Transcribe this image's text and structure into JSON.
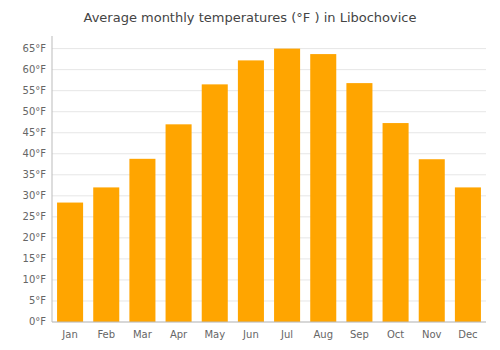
{
  "chart_data": {
    "type": "bar",
    "title": "Average monthly temperatures (°F ) in Libochovice",
    "categories": [
      "Jan",
      "Feb",
      "Mar",
      "Apr",
      "May",
      "Jun",
      "Jul",
      "Aug",
      "Sep",
      "Oct",
      "Nov",
      "Dec"
    ],
    "values": [
      28.4,
      32.0,
      38.8,
      47.0,
      56.5,
      62.2,
      65.0,
      63.7,
      56.8,
      47.3,
      38.7,
      32.0
    ],
    "color": "#FFA500",
    "ylim": [
      0,
      68
    ],
    "yticks": [
      {
        "value": 0,
        "label": "0°F"
      },
      {
        "value": 5,
        "label": "5°F"
      },
      {
        "value": 10,
        "label": "10°F"
      },
      {
        "value": 15,
        "label": "15°F"
      },
      {
        "value": 20,
        "label": "20°F"
      },
      {
        "value": 25,
        "label": "25°F"
      },
      {
        "value": 30,
        "label": "30°F"
      },
      {
        "value": 35,
        "label": "35°F"
      },
      {
        "value": 40,
        "label": "40°F"
      },
      {
        "value": 45,
        "label": "45°F"
      },
      {
        "value": 50,
        "label": "50°F"
      },
      {
        "value": 55,
        "label": "55°F"
      },
      {
        "value": 60,
        "label": "60°F"
      },
      {
        "value": 65,
        "label": "65°F"
      }
    ],
    "grid": true
  }
}
